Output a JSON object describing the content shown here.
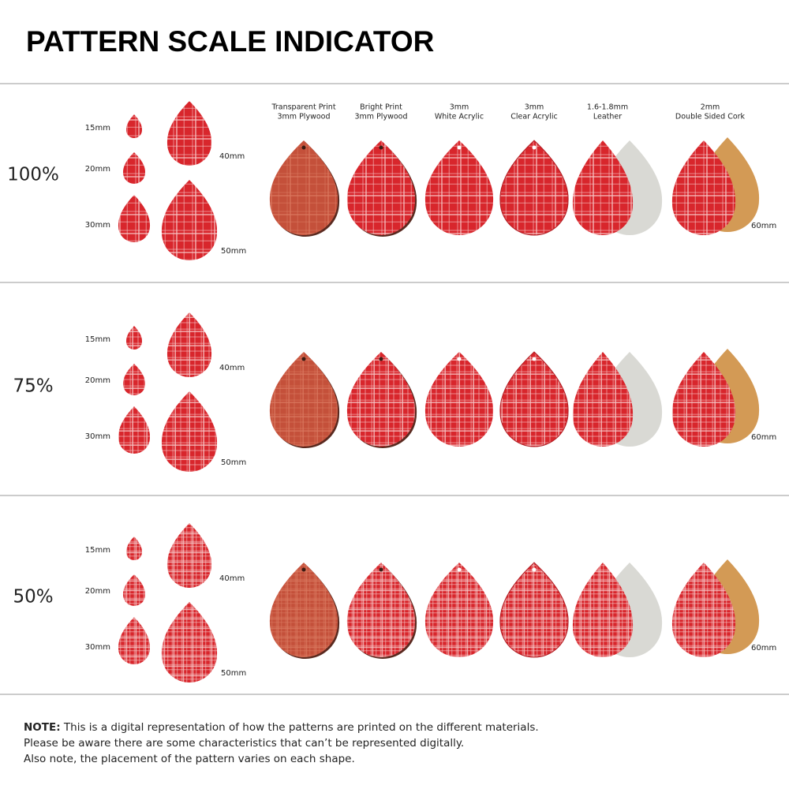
{
  "title": "PATTERN SCALE INDICATOR",
  "materials": [
    [
      "Transparent Print",
      "3mm Plywood"
    ],
    [
      "Bright Print",
      "3mm Plywood"
    ],
    [
      "3mm",
      "White Acrylic"
    ],
    [
      "3mm",
      "Clear Acrylic"
    ],
    [
      "1.6-1.8mm",
      "Leather"
    ],
    [
      "2mm",
      "Double Sided Cork"
    ]
  ],
  "sections": [
    {
      "scale": "100%",
      "sizes": [
        "15mm",
        "20mm",
        "30mm",
        "40mm",
        "50mm"
      ],
      "large_size": "60mm"
    },
    {
      "scale": "75%",
      "sizes": [
        "15mm",
        "20mm",
        "30mm",
        "40mm",
        "50mm"
      ],
      "large_size": "60mm"
    },
    {
      "scale": "50%",
      "sizes": [
        "15mm",
        "20mm",
        "30mm",
        "40mm",
        "50mm"
      ],
      "large_size": "60mm"
    }
  ],
  "note": {
    "label": "NOTE:",
    "lines": [
      "This is a digital representation of how the patterns are printed on the different materials.",
      "Please be aware there are some characteristics that can’t be represented digitally.",
      "Also note, the placement of the pattern varies on each shape."
    ]
  }
}
